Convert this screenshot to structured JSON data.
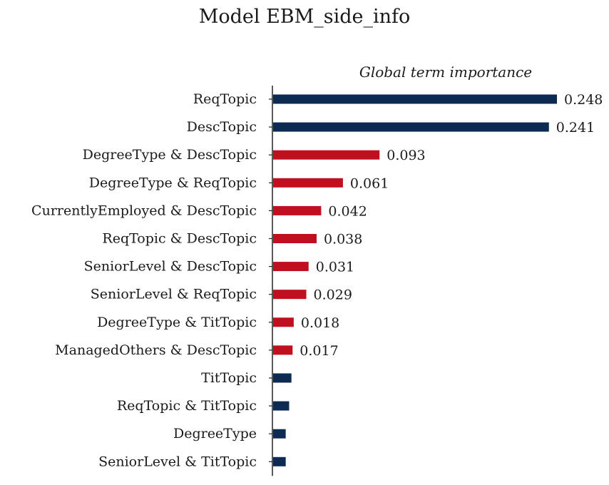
{
  "chart_data": {
    "type": "bar",
    "orientation": "horizontal",
    "title": "Model EBM_side_info",
    "subtitle": "Global term importance",
    "categories": [
      "ReqTopic",
      "DescTopic",
      "DegreeType & DescTopic",
      "DegreeType & ReqTopic",
      "CurrentlyEmployed & DescTopic",
      "ReqTopic & DescTopic",
      "SeniorLevel & DescTopic",
      "SeniorLevel & ReqTopic",
      "DegreeType & TitTopic",
      "ManagedOthers & DescTopic",
      "TitTopic",
      "ReqTopic & TitTopic",
      "DegreeType",
      "SeniorLevel & TitTopic"
    ],
    "values": [
      0.248,
      0.241,
      0.093,
      0.061,
      0.042,
      0.038,
      0.031,
      0.029,
      0.018,
      0.017,
      0.016,
      0.014,
      0.011,
      0.011
    ],
    "value_labels": [
      "0.248",
      "0.241",
      "0.093",
      "0.061",
      "0.042",
      "0.038",
      "0.031",
      "0.029",
      "0.018",
      "0.017",
      "",
      "",
      "",
      ""
    ],
    "bar_groups": [
      "main",
      "main",
      "interaction",
      "interaction",
      "interaction",
      "interaction",
      "interaction",
      "interaction",
      "interaction",
      "interaction",
      "main",
      "main",
      "main",
      "main"
    ],
    "colors": {
      "main": "#0d2a52",
      "interaction": "#c0101f"
    },
    "xlim": [
      0,
      0.248
    ],
    "xlabel": "",
    "ylabel": "",
    "grid": false,
    "legend": "none"
  }
}
